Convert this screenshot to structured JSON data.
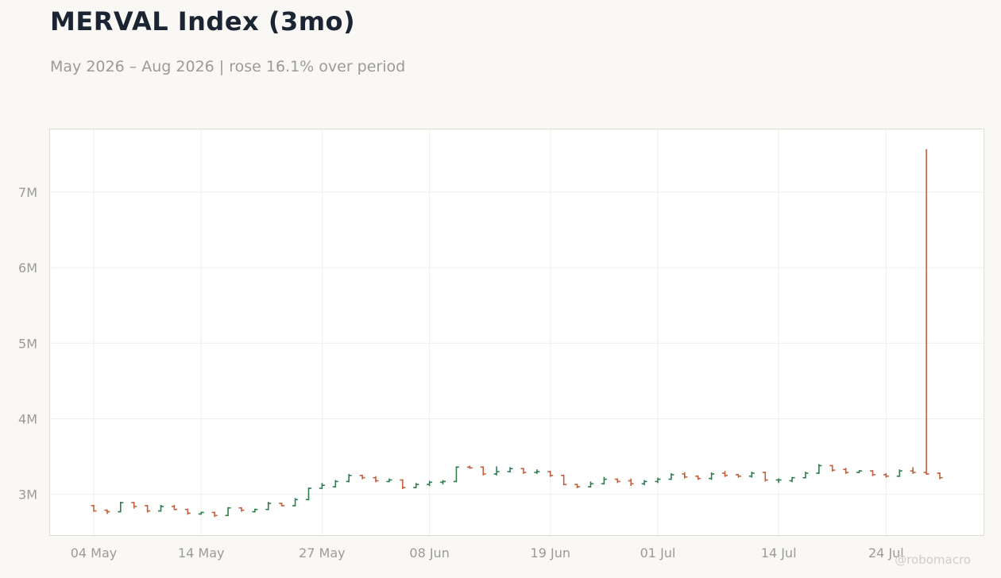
{
  "title": "MERVAL Index (3mo)",
  "subtitle": "May 2026 – Aug 2026 | rose 16.1% over period",
  "watermark": "@robomacro",
  "colors": {
    "up": "#2e7d4f",
    "down": "#c4603e",
    "grid": "#eeeeec",
    "frame": "#dddcd6",
    "plot_bg": "#ffffff",
    "page_bg": "#f9f8f5"
  },
  "chart_data": {
    "type": "ohlc",
    "title": "MERVAL Index (3mo)",
    "subtitle": "May 2026 – Aug 2026 | rose 16.1% over period",
    "x_ticks": [
      "04 May",
      "14 May",
      "27 May",
      "08 Jun",
      "19 Jun",
      "01 Jul",
      "14 Jul",
      "24 Jul"
    ],
    "y_ticks": [
      "3M",
      "4M",
      "5M",
      "6M",
      "7M"
    ],
    "y_tick_values": [
      3000000,
      4000000,
      5000000,
      6000000,
      7000000
    ],
    "ylim": [
      2460000,
      7830000
    ],
    "grid": true,
    "bars": [
      {
        "date": "04 May",
        "o": 2850000,
        "h": 2860000,
        "l": 2770000,
        "c": 2780000
      },
      {
        "date": "05 May",
        "o": 2790000,
        "h": 2800000,
        "l": 2740000,
        "c": 2770000
      },
      {
        "date": "06 May",
        "o": 2770000,
        "h": 2900000,
        "l": 2760000,
        "c": 2890000
      },
      {
        "date": "07 May",
        "o": 2890000,
        "h": 2900000,
        "l": 2810000,
        "c": 2840000
      },
      {
        "date": "08 May",
        "o": 2850000,
        "h": 2860000,
        "l": 2760000,
        "c": 2780000
      },
      {
        "date": "11 May",
        "o": 2780000,
        "h": 2860000,
        "l": 2770000,
        "c": 2840000
      },
      {
        "date": "12 May",
        "o": 2840000,
        "h": 2860000,
        "l": 2790000,
        "c": 2800000
      },
      {
        "date": "13 May",
        "o": 2800000,
        "h": 2810000,
        "l": 2730000,
        "c": 2750000
      },
      {
        "date": "14 May",
        "o": 2740000,
        "h": 2770000,
        "l": 2730000,
        "c": 2760000
      },
      {
        "date": "15 May",
        "o": 2760000,
        "h": 2770000,
        "l": 2700000,
        "c": 2720000
      },
      {
        "date": "18 May",
        "o": 2720000,
        "h": 2830000,
        "l": 2710000,
        "c": 2820000
      },
      {
        "date": "19 May",
        "o": 2820000,
        "h": 2830000,
        "l": 2770000,
        "c": 2790000
      },
      {
        "date": "20 May",
        "o": 2770000,
        "h": 2810000,
        "l": 2760000,
        "c": 2800000
      },
      {
        "date": "21 May",
        "o": 2800000,
        "h": 2900000,
        "l": 2790000,
        "c": 2880000
      },
      {
        "date": "22 May",
        "o": 2880000,
        "h": 2890000,
        "l": 2840000,
        "c": 2850000
      },
      {
        "date": "25 May",
        "o": 2850000,
        "h": 2950000,
        "l": 2840000,
        "c": 2930000
      },
      {
        "date": "26 May",
        "o": 2930000,
        "h": 3090000,
        "l": 2920000,
        "c": 3080000
      },
      {
        "date": "27 May",
        "o": 3080000,
        "h": 3150000,
        "l": 3070000,
        "c": 3120000
      },
      {
        "date": "28 May",
        "o": 3100000,
        "h": 3190000,
        "l": 3090000,
        "c": 3170000
      },
      {
        "date": "29 May",
        "o": 3170000,
        "h": 3270000,
        "l": 3160000,
        "c": 3250000
      },
      {
        "date": "01 Jun",
        "o": 3250000,
        "h": 3260000,
        "l": 3200000,
        "c": 3220000
      },
      {
        "date": "02 Jun",
        "o": 3220000,
        "h": 3240000,
        "l": 3160000,
        "c": 3180000
      },
      {
        "date": "03 Jun",
        "o": 3170000,
        "h": 3210000,
        "l": 3160000,
        "c": 3190000
      },
      {
        "date": "04 Jun",
        "o": 3190000,
        "h": 3200000,
        "l": 3070000,
        "c": 3090000
      },
      {
        "date": "05 Jun",
        "o": 3090000,
        "h": 3150000,
        "l": 3080000,
        "c": 3130000
      },
      {
        "date": "08 Jun",
        "o": 3130000,
        "h": 3180000,
        "l": 3110000,
        "c": 3160000
      },
      {
        "date": "09 Jun",
        "o": 3160000,
        "h": 3190000,
        "l": 3130000,
        "c": 3170000
      },
      {
        "date": "10 Jun",
        "o": 3170000,
        "h": 3370000,
        "l": 3160000,
        "c": 3360000
      },
      {
        "date": "11 Jun",
        "o": 3360000,
        "h": 3380000,
        "l": 3340000,
        "c": 3350000
      },
      {
        "date": "12 Jun",
        "o": 3360000,
        "h": 3370000,
        "l": 3250000,
        "c": 3270000
      },
      {
        "date": "15 Jun",
        "o": 3270000,
        "h": 3370000,
        "l": 3250000,
        "c": 3300000
      },
      {
        "date": "16 Jun",
        "o": 3300000,
        "h": 3360000,
        "l": 3290000,
        "c": 3340000
      },
      {
        "date": "17 Jun",
        "o": 3340000,
        "h": 3350000,
        "l": 3270000,
        "c": 3290000
      },
      {
        "date": "18 Jun",
        "o": 3290000,
        "h": 3330000,
        "l": 3270000,
        "c": 3300000
      },
      {
        "date": "19 Jun",
        "o": 3300000,
        "h": 3310000,
        "l": 3230000,
        "c": 3250000
      },
      {
        "date": "22 Jun",
        "o": 3250000,
        "h": 3260000,
        "l": 3120000,
        "c": 3130000
      },
      {
        "date": "23 Jun",
        "o": 3130000,
        "h": 3140000,
        "l": 3080000,
        "c": 3100000
      },
      {
        "date": "24 Jun",
        "o": 3100000,
        "h": 3170000,
        "l": 3090000,
        "c": 3140000
      },
      {
        "date": "25 Jun",
        "o": 3140000,
        "h": 3230000,
        "l": 3130000,
        "c": 3200000
      },
      {
        "date": "26 Jun",
        "o": 3200000,
        "h": 3210000,
        "l": 3150000,
        "c": 3170000
      },
      {
        "date": "29 Jun",
        "o": 3180000,
        "h": 3210000,
        "l": 3110000,
        "c": 3140000
      },
      {
        "date": "30 Jun",
        "o": 3140000,
        "h": 3190000,
        "l": 3120000,
        "c": 3170000
      },
      {
        "date": "01 Jul",
        "o": 3170000,
        "h": 3220000,
        "l": 3150000,
        "c": 3200000
      },
      {
        "date": "02 Jul",
        "o": 3200000,
        "h": 3280000,
        "l": 3190000,
        "c": 3260000
      },
      {
        "date": "03 Jul",
        "o": 3270000,
        "h": 3290000,
        "l": 3210000,
        "c": 3230000
      },
      {
        "date": "06 Jul",
        "o": 3240000,
        "h": 3250000,
        "l": 3190000,
        "c": 3210000
      },
      {
        "date": "07 Jul",
        "o": 3210000,
        "h": 3290000,
        "l": 3190000,
        "c": 3270000
      },
      {
        "date": "08 Jul",
        "o": 3280000,
        "h": 3310000,
        "l": 3230000,
        "c": 3250000
      },
      {
        "date": "09 Jul",
        "o": 3260000,
        "h": 3270000,
        "l": 3220000,
        "c": 3240000
      },
      {
        "date": "10 Jul",
        "o": 3240000,
        "h": 3300000,
        "l": 3220000,
        "c": 3280000
      },
      {
        "date": "13 Jul",
        "o": 3290000,
        "h": 3300000,
        "l": 3170000,
        "c": 3190000
      },
      {
        "date": "14 Jul",
        "o": 3190000,
        "h": 3210000,
        "l": 3150000,
        "c": 3190000
      },
      {
        "date": "15 Jul",
        "o": 3180000,
        "h": 3230000,
        "l": 3160000,
        "c": 3220000
      },
      {
        "date": "16 Jul",
        "o": 3220000,
        "h": 3300000,
        "l": 3210000,
        "c": 3280000
      },
      {
        "date": "17 Jul",
        "o": 3280000,
        "h": 3400000,
        "l": 3270000,
        "c": 3380000
      },
      {
        "date": "20 Jul",
        "o": 3380000,
        "h": 3390000,
        "l": 3300000,
        "c": 3320000
      },
      {
        "date": "21 Jul",
        "o": 3330000,
        "h": 3350000,
        "l": 3270000,
        "c": 3290000
      },
      {
        "date": "22 Jul",
        "o": 3290000,
        "h": 3320000,
        "l": 3280000,
        "c": 3310000
      },
      {
        "date": "23 Jul",
        "o": 3310000,
        "h": 3320000,
        "l": 3240000,
        "c": 3260000
      },
      {
        "date": "24 Jul",
        "o": 3260000,
        "h": 3280000,
        "l": 3220000,
        "c": 3240000
      },
      {
        "date": "27 Jul",
        "o": 3240000,
        "h": 3330000,
        "l": 3230000,
        "c": 3310000
      },
      {
        "date": "28 Jul",
        "o": 3310000,
        "h": 3360000,
        "l": 3270000,
        "c": 3290000
      },
      {
        "date": "29 Jul",
        "o": 3290000,
        "h": 7570000,
        "l": 3260000,
        "c": 3270000
      },
      {
        "date": "30 Jul",
        "o": 3280000,
        "h": 3290000,
        "l": 3200000,
        "c": 3220000
      }
    ]
  }
}
